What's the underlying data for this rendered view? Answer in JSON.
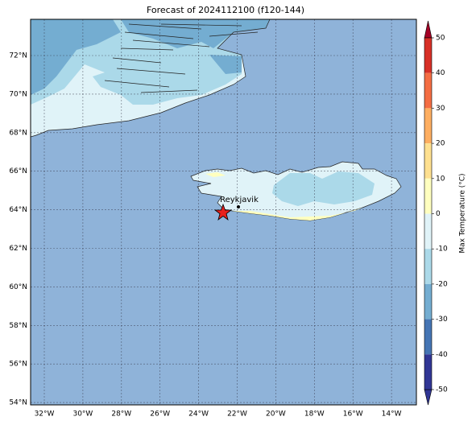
{
  "title": "Forecast of 2024112100 (f120-144)",
  "lat_labels": [
    "72°N",
    "70°N",
    "68°N",
    "66°N",
    "64°N",
    "62°N",
    "60°N",
    "58°N",
    "56°N",
    "54°N"
  ],
  "lon_labels": [
    "32°W",
    "30°W",
    "28°W",
    "26°W",
    "24°W",
    "22°W",
    "20°W",
    "18°W",
    "16°W",
    "14°W"
  ],
  "place_label": "Reykjavik",
  "colorbar": {
    "label": "Max Temperature (°C)",
    "ticks": [
      50,
      40,
      30,
      20,
      10,
      0,
      -10,
      -20,
      -30,
      -40,
      -50
    ],
    "colors": [
      "#d73027",
      "#f46d43",
      "#fdae61",
      "#fee090",
      "#ffffbf",
      "#e0f3f8",
      "#abd9e9",
      "#74add1",
      "#4575b4",
      "#313695"
    ],
    "over_color": "#a50026",
    "under_color": "#313695"
  }
}
